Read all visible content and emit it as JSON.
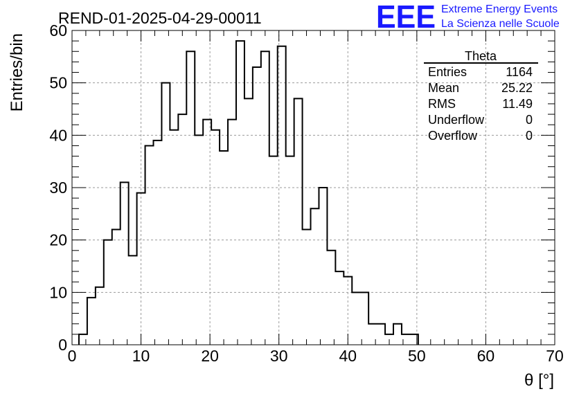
{
  "header": {
    "run_title": "REND-01-2025-04-29-00011",
    "logo_text": "EEE",
    "logo_line1": "Extreme Energy Events",
    "logo_line2": "La Scienza nelle Scuole",
    "logo_color": "#1a1aff"
  },
  "stats": {
    "title": "Theta",
    "rows": [
      {
        "label": "Entries",
        "value": "1164"
      },
      {
        "label": "Mean",
        "value": "25.22"
      },
      {
        "label": "RMS",
        "value": "11.49"
      },
      {
        "label": "Underflow",
        "value": "0"
      },
      {
        "label": "Overflow",
        "value": "0"
      }
    ]
  },
  "chart_data": {
    "type": "bar",
    "histogram": true,
    "xlabel": "θ [°]",
    "ylabel": "Entries/bin",
    "xlim": [
      0,
      70
    ],
    "ylim": [
      0,
      60
    ],
    "bin_width": 1.2,
    "x_start": 1.0,
    "values": [
      2,
      9,
      11,
      20,
      22,
      31,
      17,
      29,
      38,
      39,
      50,
      41,
      44,
      56,
      40,
      43,
      41,
      37,
      43,
      58,
      47,
      53,
      56,
      36,
      57,
      36,
      47,
      22,
      26,
      30,
      18,
      14,
      13,
      10,
      10,
      4,
      4,
      2,
      4,
      2,
      2
    ],
    "x_ticks": [
      "0",
      "10",
      "20",
      "30",
      "40",
      "50",
      "60",
      "70"
    ],
    "y_ticks": [
      "0",
      "10",
      "20",
      "30",
      "40",
      "50",
      "60"
    ],
    "grid": true
  }
}
